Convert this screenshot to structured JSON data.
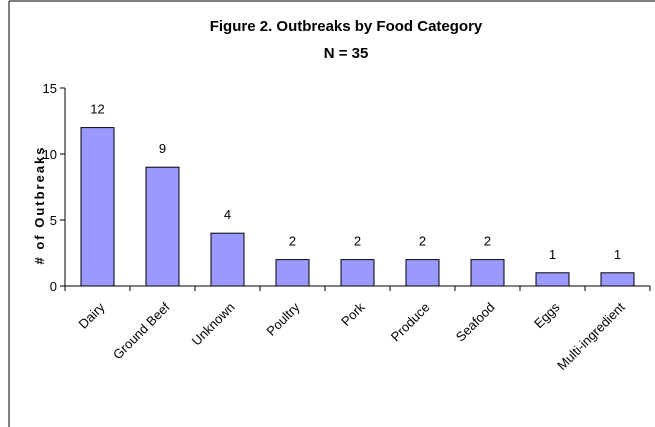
{
  "chart_data": {
    "type": "bar",
    "title": "Figure 2. Outbreaks by Food Category",
    "subtitle": "N = 35",
    "xlabel": "",
    "ylabel": "# of Outbreaks",
    "ylim": [
      0,
      15
    ],
    "yticks": [
      0,
      5,
      10,
      15
    ],
    "grid": false,
    "legend": "none",
    "categories": [
      "Dairy",
      "Ground Beef",
      "Unknown",
      "Poultry",
      "Pork",
      "Produce",
      "Seafood",
      "Eggs",
      "Multi-ingredient"
    ],
    "values": [
      12,
      9,
      4,
      2,
      2,
      2,
      2,
      1,
      1
    ],
    "data_labels": [
      "12",
      "9",
      "4",
      "2",
      "2",
      "2",
      "2",
      "1",
      "1"
    ],
    "colors": {
      "bar_fill": "#9999ff",
      "bar_stroke": "#000000",
      "axis": "#000000",
      "frame": "#000000"
    }
  }
}
